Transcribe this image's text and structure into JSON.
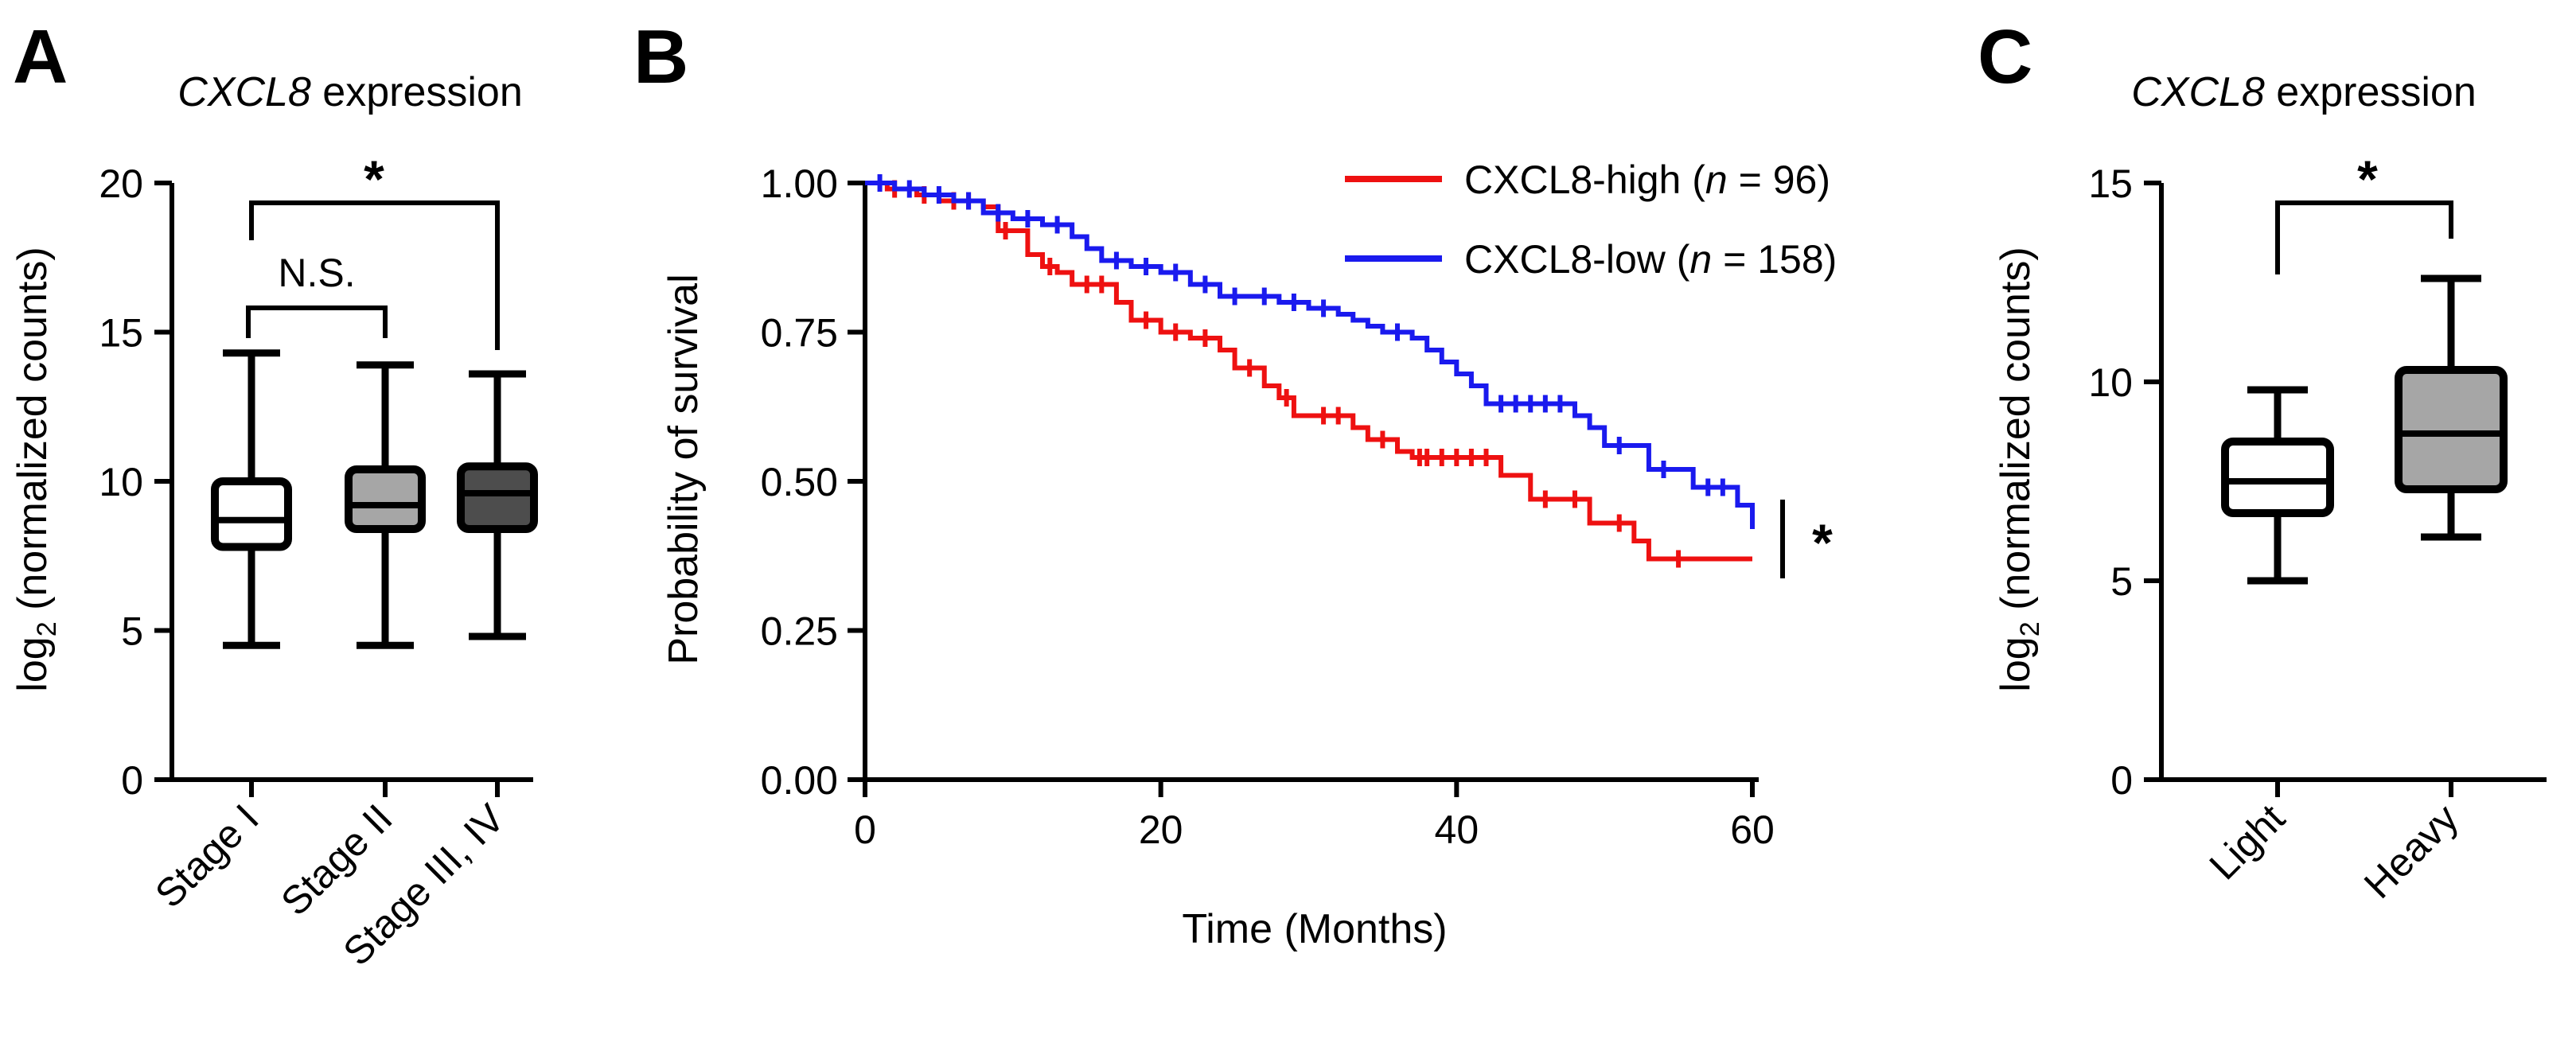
{
  "panels": {
    "A": {
      "letter": "A",
      "title_gene": "CXCL8",
      "title_rest": " expression",
      "ylabel_pre": "log",
      "ylabel_sub": "2",
      "ylabel_post": " (normalized counts)",
      "yticks": [
        "0",
        "5",
        "10",
        "15",
        "20"
      ],
      "sig_overall": "*",
      "sig_ns": "N.S."
    },
    "B": {
      "letter": "B",
      "ylabel": "Probability of survival",
      "xlabel": "Time (Months)",
      "yticks": [
        "0.00",
        "0.25",
        "0.50",
        "0.75",
        "1.00"
      ],
      "xticks": [
        "0",
        "20",
        "40",
        "60"
      ],
      "legend_high": {
        "pre": "CXCL8-high (",
        "n": "n",
        "post": " = 96)"
      },
      "legend_low": {
        "pre": "CXCL8-low (",
        "n": "n",
        "post": " = 158)"
      },
      "sig": "*"
    },
    "C": {
      "letter": "C",
      "title_gene": "CXCL8",
      "title_rest": " expression",
      "ylabel_pre": "log",
      "ylabel_sub": "2",
      "ylabel_post": " (normalized counts)",
      "yticks": [
        "0",
        "5",
        "10",
        "15"
      ],
      "sig": "*"
    }
  },
  "colors": {
    "high": "#ee1111",
    "low": "#1a1aee",
    "box_white": "#ffffff",
    "box_light": "#a6a6a6",
    "box_dark": "#4d4d4d"
  },
  "chart_data": [
    {
      "type": "box",
      "id": "A",
      "title": "CXCL8 expression",
      "ylabel": "log2 (normalized counts)",
      "ylim": [
        0,
        20
      ],
      "categories": [
        "Stage I",
        "Stage II",
        "Stage III, IV"
      ],
      "boxes": [
        {
          "label": "Stage I",
          "min": 4.5,
          "q1": 7.8,
          "median": 8.7,
          "q3": 10.0,
          "max": 14.3,
          "fill": "white"
        },
        {
          "label": "Stage II",
          "min": 4.5,
          "q1": 8.4,
          "median": 9.2,
          "q3": 10.4,
          "max": 13.9,
          "fill": "light"
        },
        {
          "label": "Stage III, IV",
          "min": 4.8,
          "q1": 8.4,
          "median": 9.6,
          "q3": 10.5,
          "max": 13.6,
          "fill": "dark"
        }
      ],
      "comparisons": [
        {
          "from": "Stage I",
          "to": "Stage III, IV",
          "label": "*"
        },
        {
          "from": "Stage I",
          "to": "Stage II",
          "label": "N.S."
        }
      ]
    },
    {
      "type": "line",
      "id": "B",
      "subtype": "kaplan-meier",
      "xlabel": "Time (Months)",
      "ylabel": "Probability of survival",
      "xlim": [
        0,
        60
      ],
      "ylim": [
        0,
        1
      ],
      "series": [
        {
          "name": "CXCL8-high (n = 96)",
          "color_key": "high",
          "steps": [
            [
              0,
              1.0
            ],
            [
              1.5,
              0.99
            ],
            [
              3.5,
              0.98
            ],
            [
              5,
              0.97
            ],
            [
              8,
              0.96
            ],
            [
              9,
              0.92
            ],
            [
              11,
              0.88
            ],
            [
              12,
              0.86
            ],
            [
              13,
              0.85
            ],
            [
              14,
              0.83
            ],
            [
              17,
              0.8
            ],
            [
              18,
              0.77
            ],
            [
              20,
              0.75
            ],
            [
              22,
              0.74
            ],
            [
              24,
              0.72
            ],
            [
              25,
              0.69
            ],
            [
              27,
              0.66
            ],
            [
              28,
              0.64
            ],
            [
              29,
              0.61
            ],
            [
              33,
              0.59
            ],
            [
              34,
              0.57
            ],
            [
              36,
              0.55
            ],
            [
              37,
              0.54
            ],
            [
              43,
              0.51
            ],
            [
              45,
              0.47
            ],
            [
              49,
              0.43
            ],
            [
              52,
              0.4
            ],
            [
              53,
              0.37
            ],
            [
              60,
              0.37
            ]
          ],
          "censor": [
            2,
            4,
            6,
            7,
            9.5,
            12.5,
            15,
            16,
            19,
            21,
            23,
            26,
            28.5,
            31,
            32,
            35,
            37.5,
            38,
            39,
            40,
            41,
            42,
            46,
            48,
            51,
            55
          ]
        },
        {
          "name": "CXCL8-low (n = 158)",
          "color_key": "low",
          "steps": [
            [
              0,
              1.0
            ],
            [
              2,
              0.99
            ],
            [
              4,
              0.98
            ],
            [
              6,
              0.97
            ],
            [
              8,
              0.95
            ],
            [
              10,
              0.94
            ],
            [
              12,
              0.93
            ],
            [
              14,
              0.91
            ],
            [
              15,
              0.89
            ],
            [
              16,
              0.87
            ],
            [
              18,
              0.86
            ],
            [
              20,
              0.85
            ],
            [
              22,
              0.83
            ],
            [
              24,
              0.81
            ],
            [
              28,
              0.8
            ],
            [
              30,
              0.79
            ],
            [
              32,
              0.78
            ],
            [
              33,
              0.77
            ],
            [
              34,
              0.76
            ],
            [
              35,
              0.75
            ],
            [
              37,
              0.74
            ],
            [
              38,
              0.72
            ],
            [
              39,
              0.7
            ],
            [
              40,
              0.68
            ],
            [
              41,
              0.66
            ],
            [
              42,
              0.63
            ],
            [
              48,
              0.61
            ],
            [
              49,
              0.59
            ],
            [
              50,
              0.56
            ],
            [
              53,
              0.52
            ],
            [
              56,
              0.49
            ],
            [
              59,
              0.46
            ],
            [
              60,
              0.42
            ]
          ],
          "censor": [
            1,
            3,
            5,
            7,
            9,
            11,
            13,
            17,
            19,
            21,
            23,
            25,
            27,
            29,
            31,
            36,
            43,
            44,
            45,
            46,
            47,
            51,
            54,
            57,
            58
          ]
        }
      ],
      "annotation": "*"
    },
    {
      "type": "box",
      "id": "C",
      "title": "CXCL8 expression",
      "ylabel": "log2 (normalized counts)",
      "ylim": [
        0,
        15
      ],
      "categories": [
        "Light",
        "Heavy"
      ],
      "boxes": [
        {
          "label": "Light",
          "min": 5.0,
          "q1": 6.7,
          "median": 7.5,
          "q3": 8.5,
          "max": 9.8,
          "fill": "white"
        },
        {
          "label": "Heavy",
          "min": 6.1,
          "q1": 7.3,
          "median": 8.7,
          "q3": 10.3,
          "max": 12.6,
          "fill": "light"
        }
      ],
      "comparisons": [
        {
          "from": "Light",
          "to": "Heavy",
          "label": "*"
        }
      ]
    }
  ]
}
